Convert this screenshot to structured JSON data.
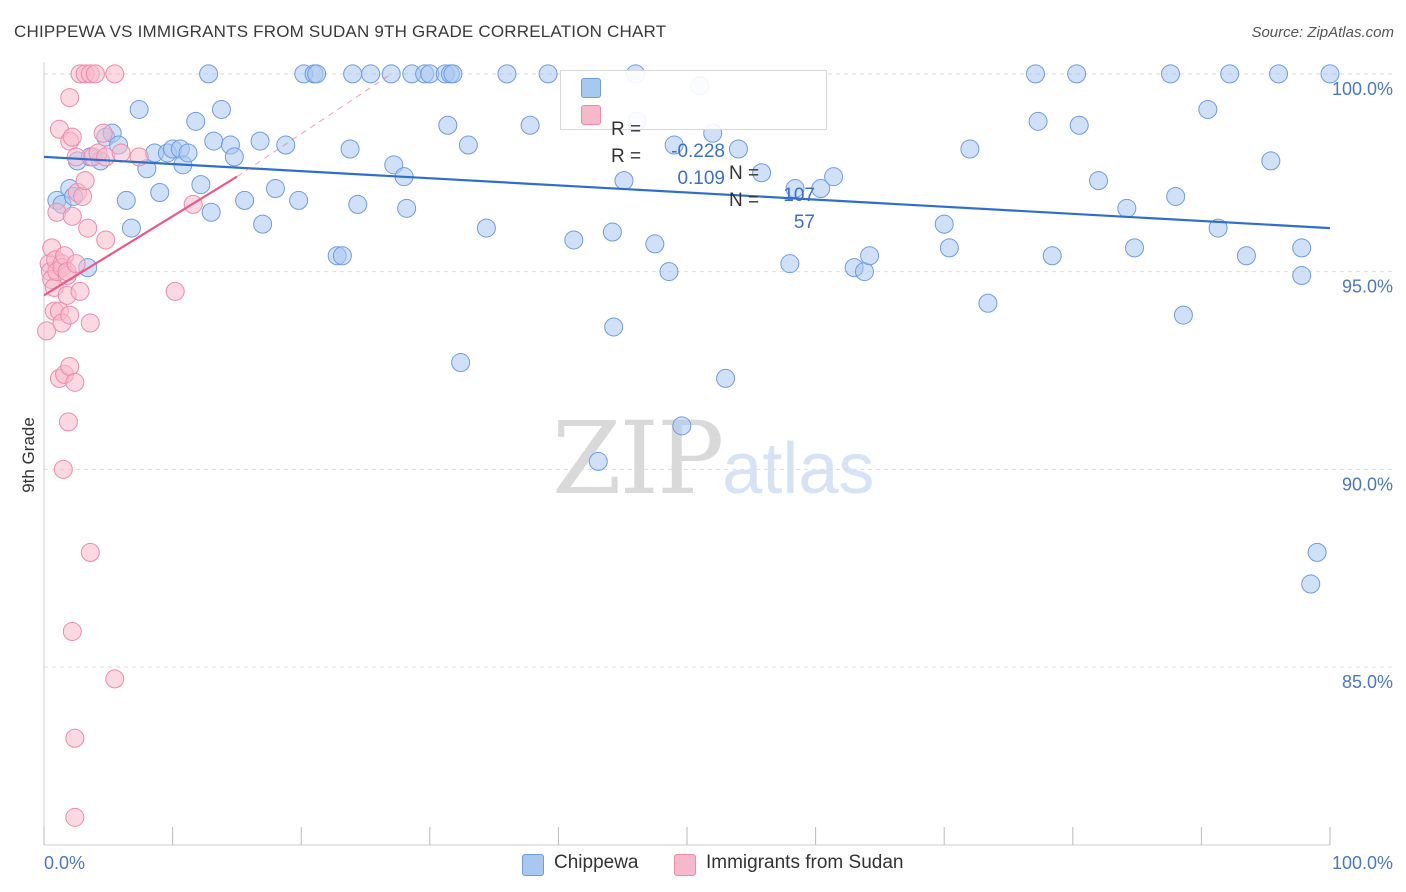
{
  "title": "CHIPPEWA VS IMMIGRANTS FROM SUDAN 9TH GRADE CORRELATION CHART",
  "source": "Source: ZipAtlas.com",
  "watermark": {
    "zip": "ZIP",
    "atlas": "atlas"
  },
  "colors": {
    "blue_fill": "#a9c8f0",
    "blue_stroke": "#6e9ce0",
    "blue_line": "#2f6fcc",
    "pink_fill": "#f6b9cc",
    "pink_stroke": "#ee8aaa",
    "pink_line": "#e85a8a",
    "grid": "#dddddd",
    "tick_label": "#4a78c4"
  },
  "legend_top": {
    "rows": [
      {
        "r_label": "R =",
        "r_value": "-0.228",
        "n_label": "N =",
        "n_value": "107",
        "series": "Chippewa"
      },
      {
        "r_label": "R =",
        "r_value": "0.109",
        "n_label": "N =",
        "n_value": "57",
        "series": "Immigrants from Sudan"
      }
    ]
  },
  "legend_bottom": [
    "Chippewa",
    "Immigrants from Sudan"
  ],
  "chart_data": {
    "type": "scatter",
    "title": "CHIPPEWA VS IMMIGRANTS FROM SUDAN 9TH GRADE CORRELATION CHART",
    "xlabel": "",
    "ylabel": "9th Grade",
    "xlim": [
      0,
      100
    ],
    "ylim": [
      80.5,
      100.3
    ],
    "x_tick_labels": [
      "0.0%",
      "100.0%"
    ],
    "y_ticks": [
      85,
      90,
      95,
      100
    ],
    "y_tick_labels": [
      "85.0%",
      "90.0%",
      "95.0%",
      "100.0%"
    ],
    "grid": "horizontal dashed",
    "legend": "top-center and bottom",
    "series": [
      {
        "name": "Chippewa",
        "color": "#a9c8f0",
        "trend": {
          "x": [
            0,
            100
          ],
          "y": [
            97.9,
            96.1
          ]
        },
        "points": [
          [
            1.0,
            96.8
          ],
          [
            1.4,
            96.7
          ],
          [
            2.0,
            97.1
          ],
          [
            2.3,
            96.9
          ],
          [
            2.6,
            97.8
          ],
          [
            3.4,
            95.1
          ],
          [
            3.6,
            97.9
          ],
          [
            4.4,
            97.8
          ],
          [
            4.8,
            98.4
          ],
          [
            5.3,
            98.5
          ],
          [
            5.8,
            98.2
          ],
          [
            6.4,
            96.8
          ],
          [
            6.8,
            96.1
          ],
          [
            7.4,
            99.1
          ],
          [
            8.0,
            97.6
          ],
          [
            8.6,
            98.0
          ],
          [
            9.0,
            97.0
          ],
          [
            9.6,
            98.0
          ],
          [
            10.0,
            98.1
          ],
          [
            10.6,
            98.1
          ],
          [
            10.8,
            97.7
          ],
          [
            11.2,
            98.0
          ],
          [
            11.8,
            98.8
          ],
          [
            12.2,
            97.2
          ],
          [
            12.8,
            100.0
          ],
          [
            13.0,
            96.5
          ],
          [
            13.2,
            98.3
          ],
          [
            13.8,
            99.1
          ],
          [
            14.5,
            98.2
          ],
          [
            14.8,
            97.9
          ],
          [
            15.6,
            96.8
          ],
          [
            16.8,
            98.3
          ],
          [
            17.0,
            96.2
          ],
          [
            18.0,
            97.1
          ],
          [
            18.8,
            98.2
          ],
          [
            19.8,
            96.8
          ],
          [
            20.2,
            100.0
          ],
          [
            21.0,
            100.0
          ],
          [
            21.2,
            100.0
          ],
          [
            22.8,
            95.4
          ],
          [
            23.2,
            95.4
          ],
          [
            23.8,
            98.1
          ],
          [
            24.0,
            100.0
          ],
          [
            24.4,
            96.7
          ],
          [
            25.4,
            100.0
          ],
          [
            27.0,
            100.0
          ],
          [
            27.2,
            97.7
          ],
          [
            28.0,
            97.4
          ],
          [
            28.2,
            96.6
          ],
          [
            28.6,
            100.0
          ],
          [
            29.6,
            100.0
          ],
          [
            30.0,
            100.0
          ],
          [
            31.2,
            100.0
          ],
          [
            31.6,
            100.0
          ],
          [
            31.8,
            100.0
          ],
          [
            31.4,
            98.7
          ],
          [
            32.4,
            92.7
          ],
          [
            33.0,
            98.2
          ],
          [
            34.4,
            96.1
          ],
          [
            36.0,
            100.0
          ],
          [
            37.8,
            98.7
          ],
          [
            39.2,
            100.0
          ],
          [
            41.2,
            95.8
          ],
          [
            43.1,
            90.2
          ],
          [
            44.2,
            96.0
          ],
          [
            44.3,
            93.6
          ],
          [
            45.1,
            97.3
          ],
          [
            46.0,
            100.0
          ],
          [
            46.1,
            98.8
          ],
          [
            47.5,
            95.7
          ],
          [
            48.6,
            95.0
          ],
          [
            49.0,
            98.2
          ],
          [
            49.6,
            91.1
          ],
          [
            51.0,
            99.7
          ],
          [
            52.0,
            98.5
          ],
          [
            53.0,
            92.3
          ],
          [
            54.0,
            98.1
          ],
          [
            55.8,
            97.5
          ],
          [
            58.0,
            95.2
          ],
          [
            58.4,
            97.1
          ],
          [
            60.4,
            97.1
          ],
          [
            61.4,
            97.4
          ],
          [
            63.0,
            95.1
          ],
          [
            63.8,
            95.0
          ],
          [
            64.2,
            95.4
          ],
          [
            70.0,
            96.2
          ],
          [
            70.4,
            95.6
          ],
          [
            72.0,
            98.1
          ],
          [
            73.4,
            94.2
          ],
          [
            77.1,
            100.0
          ],
          [
            77.3,
            98.8
          ],
          [
            78.4,
            95.4
          ],
          [
            80.3,
            100.0
          ],
          [
            80.5,
            98.7
          ],
          [
            82.0,
            97.3
          ],
          [
            84.2,
            96.6
          ],
          [
            84.8,
            95.6
          ],
          [
            87.6,
            100.0
          ],
          [
            88.0,
            96.9
          ],
          [
            88.6,
            93.9
          ],
          [
            90.5,
            99.1
          ],
          [
            91.3,
            96.1
          ],
          [
            92.2,
            100.0
          ],
          [
            93.5,
            95.4
          ],
          [
            95.4,
            97.8
          ],
          [
            96.0,
            100.0
          ],
          [
            97.8,
            95.6
          ],
          [
            97.8,
            94.9
          ],
          [
            98.5,
            87.1
          ],
          [
            99.0,
            87.9
          ],
          [
            100.0,
            100.0
          ]
        ]
      },
      {
        "name": "Immigrants from Sudan",
        "color": "#f6b9cc",
        "trend": {
          "x": [
            0,
            15
          ],
          "y": [
            94.4,
            97.4
          ]
        },
        "trend_dashed": {
          "x": [
            15,
            27
          ],
          "y": [
            97.4,
            100.0
          ]
        },
        "points": [
          [
            0.2,
            93.5
          ],
          [
            0.4,
            95.2
          ],
          [
            0.5,
            95.0
          ],
          [
            0.6,
            95.6
          ],
          [
            0.6,
            94.8
          ],
          [
            0.8,
            94.6
          ],
          [
            0.8,
            94.0
          ],
          [
            0.9,
            95.3
          ],
          [
            1.0,
            95.0
          ],
          [
            1.0,
            96.5
          ],
          [
            1.2,
            98.6
          ],
          [
            1.2,
            92.3
          ],
          [
            1.2,
            94.0
          ],
          [
            1.4,
            95.2
          ],
          [
            1.4,
            93.7
          ],
          [
            1.4,
            95.1
          ],
          [
            1.5,
            90.0
          ],
          [
            1.6,
            92.4
          ],
          [
            1.6,
            95.4
          ],
          [
            1.8,
            94.4
          ],
          [
            1.8,
            94.9
          ],
          [
            1.8,
            95.0
          ],
          [
            1.9,
            91.2
          ],
          [
            2.0,
            92.6
          ],
          [
            2.0,
            93.9
          ],
          [
            2.0,
            98.3
          ],
          [
            2.0,
            99.4
          ],
          [
            2.2,
            96.4
          ],
          [
            2.2,
            85.9
          ],
          [
            2.2,
            98.4
          ],
          [
            2.4,
            92.2
          ],
          [
            2.4,
            83.2
          ],
          [
            2.4,
            81.2
          ],
          [
            2.5,
            95.2
          ],
          [
            2.5,
            97.9
          ],
          [
            2.6,
            97.0
          ],
          [
            2.8,
            94.5
          ],
          [
            2.8,
            100.0
          ],
          [
            3.0,
            96.9
          ],
          [
            3.2,
            97.3
          ],
          [
            3.2,
            100.0
          ],
          [
            3.4,
            96.1
          ],
          [
            3.6,
            87.9
          ],
          [
            3.6,
            93.7
          ],
          [
            3.6,
            100.0
          ],
          [
            3.8,
            97.9
          ],
          [
            4.0,
            100.0
          ],
          [
            4.2,
            98.0
          ],
          [
            4.6,
            98.5
          ],
          [
            4.8,
            95.8
          ],
          [
            4.8,
            97.9
          ],
          [
            5.5,
            84.7
          ],
          [
            5.5,
            100.0
          ],
          [
            6.0,
            98.0
          ],
          [
            7.4,
            97.9
          ],
          [
            10.2,
            94.5
          ],
          [
            11.6,
            96.7
          ]
        ]
      }
    ]
  }
}
